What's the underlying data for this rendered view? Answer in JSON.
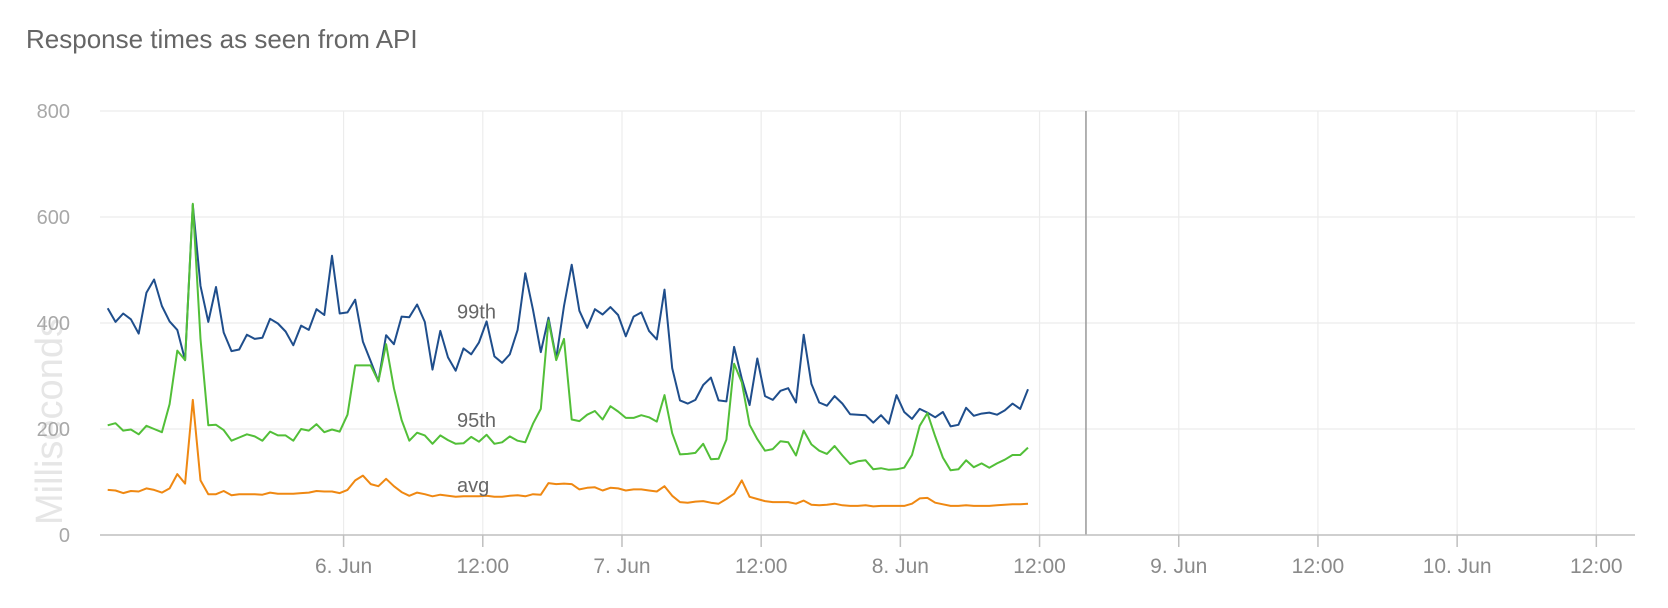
{
  "title": "Response times as seen from API",
  "chart_data": {
    "type": "line",
    "title": "Response times as seen from API",
    "ylabel": "Milliseconds",
    "xlabel": "",
    "ylim": [
      0,
      800
    ],
    "yticks": [
      0,
      200,
      400,
      600,
      800
    ],
    "xlim": [
      "2024-06-05 03:00",
      "2024-06-10 15:20"
    ],
    "xticks": [
      {
        "x": "2024-06-06 00:00",
        "label": "6. Jun"
      },
      {
        "x": "2024-06-06 12:00",
        "label": "12:00"
      },
      {
        "x": "2024-06-07 00:00",
        "label": "7. Jun"
      },
      {
        "x": "2024-06-07 12:00",
        "label": "12:00"
      },
      {
        "x": "2024-06-08 00:00",
        "label": "8. Jun"
      },
      {
        "x": "2024-06-08 12:00",
        "label": "12:00"
      },
      {
        "x": "2024-06-09 00:00",
        "label": "9. Jun"
      },
      {
        "x": "2024-06-09 12:00",
        "label": "12:00"
      },
      {
        "x": "2024-06-10 00:00",
        "label": "10. Jun"
      },
      {
        "x": "2024-06-10 12:00",
        "label": "12:00"
      }
    ],
    "grid": true,
    "crosshair_x": "2024-06-08 16:00",
    "sample_interval_minutes": 40,
    "series": [
      {
        "name": "99th",
        "color": "#1f4e8c",
        "label_at": "2024-06-06 11:20",
        "label_value": 420,
        "values": [
          428,
          402,
          418,
          407,
          380,
          457,
          482,
          432,
          403,
          387,
          330,
          623,
          470,
          402,
          468,
          382,
          347,
          350,
          378,
          370,
          372,
          408,
          399,
          384,
          358,
          395,
          387,
          426,
          415,
          527,
          418,
          420,
          444,
          365,
          328,
          290,
          377,
          360,
          412,
          411,
          435,
          402,
          312,
          385,
          335,
          310,
          352,
          341,
          363,
          403,
          337,
          325,
          341,
          387,
          494,
          425,
          345,
          410,
          333,
          432,
          510,
          423,
          391,
          426,
          416,
          430,
          415,
          375,
          412,
          420,
          385,
          369,
          463,
          315,
          254,
          248,
          255,
          283,
          297,
          254,
          252,
          355,
          295,
          245,
          333,
          262,
          255,
          272,
          277,
          250,
          378,
          285,
          250,
          244,
          262,
          248,
          228,
          227,
          226,
          212,
          226,
          210,
          264,
          232,
          219,
          238,
          231,
          222,
          232,
          205,
          208,
          240,
          225,
          229,
          231,
          227,
          235,
          248,
          238,
          275
        ]
      },
      {
        "name": "95th",
        "color": "#52bf38",
        "label_at": "2024-06-06 11:20",
        "label_value": 215,
        "values": [
          207,
          211,
          197,
          199,
          190,
          206,
          200,
          194,
          247,
          348,
          330,
          625,
          370,
          207,
          208,
          198,
          178,
          184,
          190,
          186,
          178,
          195,
          188,
          188,
          178,
          200,
          197,
          209,
          194,
          199,
          195,
          227,
          320,
          320,
          320,
          290,
          360,
          277,
          217,
          178,
          193,
          188,
          172,
          188,
          179,
          172,
          173,
          185,
          176,
          189,
          172,
          175,
          186,
          178,
          175,
          210,
          238,
          405,
          330,
          370,
          218,
          215,
          227,
          234,
          218,
          243,
          233,
          221,
          221,
          226,
          222,
          214,
          264,
          192,
          152,
          153,
          155,
          172,
          143,
          144,
          180,
          323,
          288,
          208,
          181,
          159,
          162,
          177,
          175,
          150,
          197,
          171,
          159,
          153,
          168,
          150,
          134,
          139,
          141,
          124,
          126,
          123,
          124,
          127,
          151,
          206,
          230,
          186,
          146,
          122,
          124,
          141,
          128,
          135,
          127,
          135,
          142,
          151,
          151,
          165
        ]
      },
      {
        "name": "avg",
        "color": "#ef8812",
        "label_at": "2024-06-06 11:20",
        "label_value": 92,
        "values": [
          85,
          84,
          79,
          83,
          82,
          88,
          85,
          80,
          88,
          115,
          97,
          255,
          103,
          77,
          77,
          83,
          75,
          77,
          77,
          77,
          76,
          80,
          78,
          78,
          78,
          79,
          80,
          83,
          82,
          82,
          79,
          85,
          103,
          112,
          96,
          92,
          106,
          92,
          81,
          74,
          80,
          77,
          73,
          76,
          74,
          72,
          73,
          73,
          73,
          74,
          72,
          72,
          74,
          75,
          73,
          77,
          76,
          98,
          96,
          97,
          96,
          86,
          89,
          90,
          84,
          89,
          88,
          84,
          86,
          86,
          84,
          82,
          92,
          74,
          62,
          61,
          63,
          64,
          61,
          59,
          68,
          78,
          103,
          72,
          68,
          64,
          62,
          62,
          62,
          59,
          65,
          57,
          56,
          57,
          59,
          56,
          55,
          55,
          56,
          54,
          55,
          55,
          55,
          55,
          59,
          69,
          70,
          61,
          58,
          55,
          55,
          56,
          55,
          55,
          55,
          56,
          57,
          58,
          58,
          59
        ]
      }
    ]
  }
}
